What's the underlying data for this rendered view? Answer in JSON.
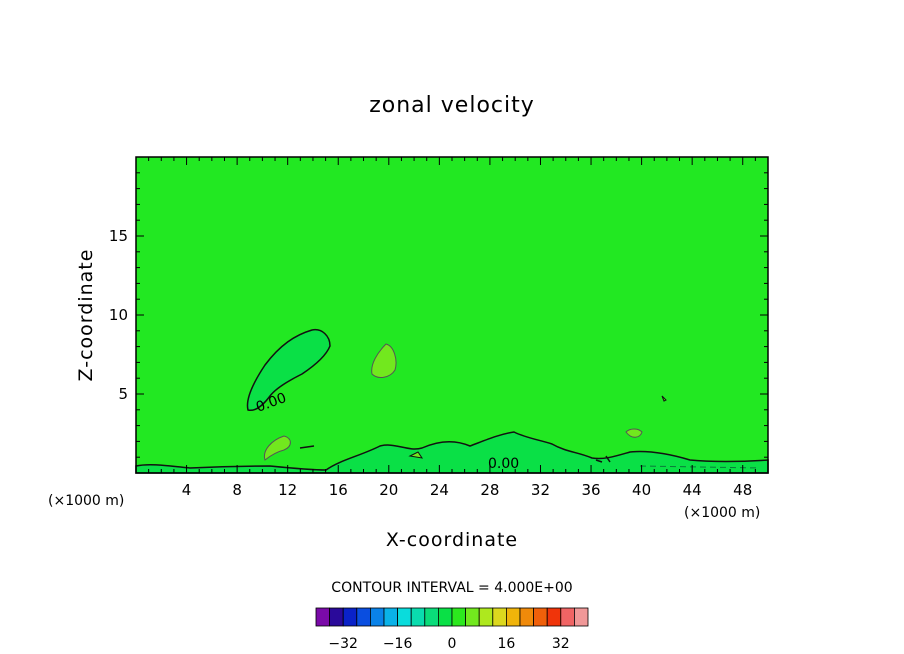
{
  "chart_data": {
    "type": "contour",
    "title": "zonal velocity",
    "xlabel": "X-coordinate",
    "ylabel": "Z-coordinate",
    "x_unit": "(×1000 m)",
    "xlim": [
      0,
      50
    ],
    "ylim": [
      0,
      20
    ],
    "x_ticks": [
      4,
      8,
      12,
      16,
      20,
      24,
      28,
      32,
      36,
      40,
      44,
      48
    ],
    "y_ticks": [
      5,
      10,
      15
    ],
    "contour_labels": [
      "0.00",
      "0.00"
    ],
    "contour_interval_text": "CONTOUR INTERVAL = 4.000E+00",
    "colorbar": {
      "tick_labels": [
        "-32",
        "-16",
        "0",
        "16",
        "32"
      ],
      "colors": [
        "#7a0aa8",
        "#2a0a9a",
        "#0a22c8",
        "#0a4ee0",
        "#0a82e8",
        "#0ab2e8",
        "#0adcdc",
        "#0adcae",
        "#0adc7a",
        "#0ae046",
        "#2ce81e",
        "#72e81e",
        "#aee81e",
        "#dcd81e",
        "#f0b40a",
        "#f08a0a",
        "#f0600a",
        "#f0340a",
        "#f06464",
        "#f09898"
      ]
    },
    "background_color": "#22e822",
    "region_colors": {
      "slightly_negative": "#0ae046",
      "slightly_positive": "#72e81e"
    }
  }
}
